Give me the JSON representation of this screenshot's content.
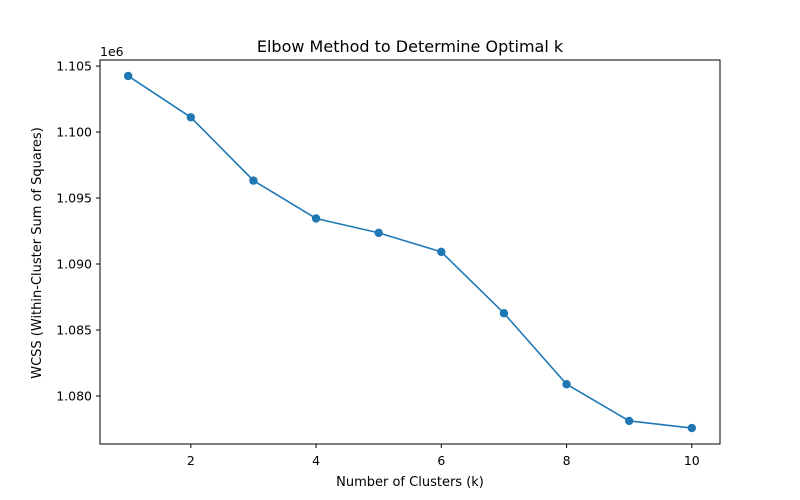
{
  "chart_data": {
    "type": "line",
    "title": "Elbow Method to Determine Optimal k",
    "xlabel": "Number of Clusters (k)",
    "ylabel": "WCSS (Within-Cluster Sum of Squares)",
    "y_offset_label": "1e6",
    "x": [
      1,
      2,
      3,
      4,
      5,
      6,
      7,
      8,
      9,
      10
    ],
    "series": [
      {
        "values": [
          1.10425,
          1.10112,
          1.09632,
          1.09345,
          1.09236,
          1.09092,
          1.08627,
          1.08089,
          1.07811,
          1.07757
        ]
      }
    ],
    "xlim": [
      0.55,
      10.45
    ],
    "ylim": [
      1.07636,
      1.10546
    ],
    "x_ticks": [
      2,
      4,
      6,
      8,
      10
    ],
    "x_tick_labels": [
      "2",
      "4",
      "6",
      "8",
      "10"
    ],
    "y_ticks": [
      1.08,
      1.085,
      1.09,
      1.095,
      1.1,
      1.105
    ],
    "y_tick_labels": [
      "1.080",
      "1.085",
      "1.090",
      "1.095",
      "1.100",
      "1.105"
    ],
    "grid": false,
    "legend": false,
    "color": "#1f77b4",
    "marker": "circle"
  }
}
